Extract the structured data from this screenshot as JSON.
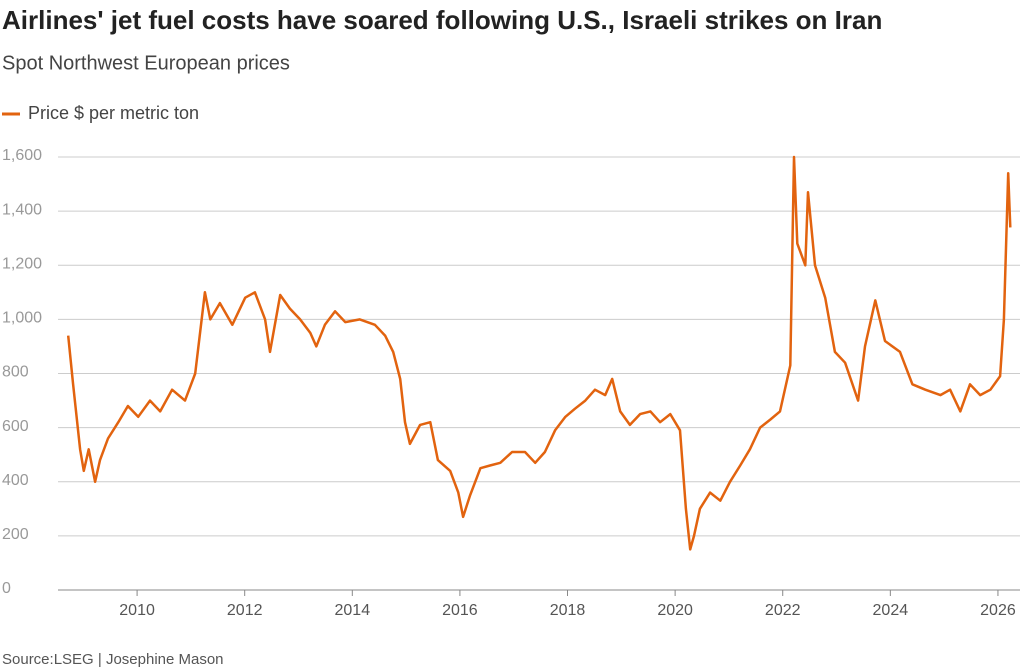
{
  "chart_data": {
    "type": "line",
    "title": "Airlines' jet fuel costs have soared following U.S., Israeli strikes on Iran",
    "subtitle": "Spot Northwest European prices",
    "source": "Source:LSEG | Josephine Mason",
    "grid": true,
    "xlim": [
      2008.53,
      2026.41
    ],
    "xticks": [
      2010,
      2012,
      2014,
      2016,
      2018,
      2020,
      2022,
      2024,
      2026
    ],
    "ylim": [
      0,
      1600
    ],
    "yticks": [
      0,
      200,
      400,
      600,
      800,
      {
        "value": 1000,
        "label": "1,000"
      },
      {
        "value": 1200,
        "label": "1,200"
      },
      {
        "value": 1400,
        "label": "1,400"
      },
      {
        "value": 1600,
        "label": "1,600"
      }
    ],
    "x": [
      2008.72,
      2008.81,
      2008.94,
      2009.01,
      2009.1,
      2009.22,
      2009.31,
      2009.46,
      2009.65,
      2009.83,
      2010.02,
      2010.24,
      2010.43,
      2010.65,
      2010.89,
      2011.08,
      2011.26,
      2011.36,
      2011.54,
      2011.77,
      2012.01,
      2012.19,
      2012.38,
      2012.47,
      2012.66,
      2012.84,
      2013.03,
      2013.22,
      2013.33,
      2013.49,
      2013.68,
      2013.87,
      2014.14,
      2014.42,
      2014.61,
      2014.76,
      2014.89,
      2014.98,
      2015.07,
      2015.26,
      2015.45,
      2015.59,
      2015.82,
      2015.97,
      2016.06,
      2016.19,
      2016.38,
      2016.56,
      2016.75,
      2016.97,
      2017.21,
      2017.4,
      2017.58,
      2017.77,
      2017.96,
      2018.14,
      2018.33,
      2018.51,
      2018.7,
      2018.83,
      2018.98,
      2019.16,
      2019.35,
      2019.54,
      2019.72,
      2019.91,
      2020.09,
      2020.2,
      2020.28,
      2020.35,
      2020.46,
      2020.65,
      2020.84,
      2021.02,
      2021.21,
      2021.39,
      2021.58,
      2021.77,
      2021.95,
      2022.14,
      2022.21,
      2022.27,
      2022.42,
      2022.47,
      2022.6,
      2022.79,
      2022.97,
      2023.16,
      2023.4,
      2023.53,
      2023.72,
      2023.9,
      2024.18,
      2024.41,
      2024.65,
      2024.93,
      2025.11,
      2025.3,
      2025.48,
      2025.67,
      2025.86,
      2026.04,
      2026.11,
      2026.19,
      2026.23
    ],
    "series": [
      {
        "name": "Price $ per metric ton",
        "color": "#e2630f",
        "values": [
          940,
          760,
          520,
          440,
          520,
          400,
          480,
          560,
          620,
          680,
          640,
          700,
          660,
          740,
          700,
          800,
          1100,
          1000,
          1060,
          980,
          1080,
          1100,
          1000,
          880,
          1090,
          1040,
          1000,
          950,
          900,
          980,
          1030,
          990,
          1000,
          980,
          940,
          880,
          780,
          620,
          540,
          610,
          620,
          480,
          440,
          360,
          270,
          350,
          450,
          460,
          470,
          510,
          510,
          470,
          510,
          590,
          640,
          670,
          700,
          740,
          720,
          780,
          660,
          610,
          650,
          660,
          620,
          650,
          590,
          300,
          150,
          200,
          300,
          360,
          330,
          400,
          460,
          520,
          600,
          630,
          660,
          830,
          1600,
          1280,
          1200,
          1470,
          1200,
          1080,
          880,
          840,
          700,
          900,
          1070,
          920,
          880,
          760,
          740,
          720,
          740,
          660,
          760,
          720,
          740,
          790,
          1000,
          1540,
          1340
        ]
      }
    ]
  }
}
